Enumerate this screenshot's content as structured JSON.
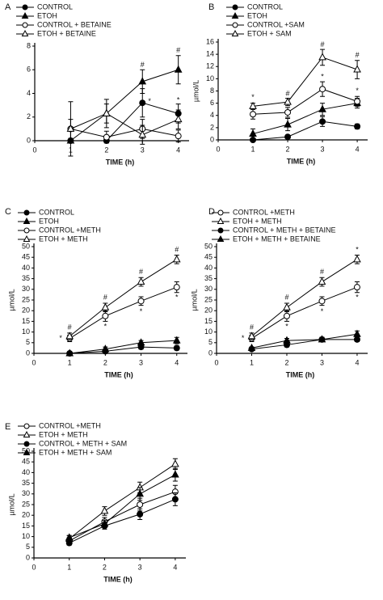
{
  "chart_data": [
    {
      "type": "line",
      "panel": "A",
      "xlabel": "TIME (h)",
      "xlim": [
        0,
        4.3
      ],
      "xticks": [
        0,
        1,
        2,
        3,
        4
      ],
      "ylim": [
        0,
        8
      ],
      "yticks": [
        0,
        2,
        4,
        6,
        8
      ],
      "x": [
        1,
        2,
        3,
        4
      ],
      "series": [
        {
          "name": "CONTROL",
          "color": "#000000",
          "marker": "circle",
          "filled": true,
          "values": [
            0,
            0,
            3.2,
            2.3
          ],
          "errors": [
            0,
            0,
            1.2,
            0.8
          ]
        },
        {
          "name": "ETOH",
          "color": "#000000",
          "marker": "triangle",
          "filled": true,
          "values": [
            0,
            2.3,
            5,
            6
          ],
          "errors": [
            0,
            0.8,
            1,
            1.2
          ]
        },
        {
          "name": "CONTROL + BETAINE",
          "color": "#000000",
          "marker": "circle",
          "filled": false,
          "values": [
            1,
            0.3,
            1,
            0.4
          ],
          "errors": [
            2.3,
            0.5,
            0.8,
            0.5
          ]
        },
        {
          "name": "ETOH + BETAINE",
          "color": "#000000",
          "marker": "triangle",
          "filled": false,
          "values": [
            1,
            2.3,
            0.5,
            1.8
          ],
          "errors": [
            0.8,
            1.2,
            0.8,
            0.8
          ]
        }
      ],
      "annotations": [
        {
          "text": "#",
          "x": 3,
          "y": 6.4
        },
        {
          "text": "#",
          "x": 4,
          "y": 7.6
        },
        {
          "text": "*",
          "x": 3.2,
          "y": 3.3
        },
        {
          "text": "*",
          "x": 4,
          "y": 3.4
        }
      ]
    },
    {
      "type": "line",
      "panel": "B",
      "xlabel": "TIME (h)",
      "ylabel": "µmol/L",
      "xlim": [
        0,
        4.3
      ],
      "xticks": [
        0,
        1,
        2,
        3,
        4
      ],
      "ylim": [
        0,
        16
      ],
      "yticks": [
        0,
        2,
        4,
        6,
        8,
        10,
        12,
        14,
        16
      ],
      "x": [
        1,
        2,
        3,
        4
      ],
      "series": [
        {
          "name": "CONTROL",
          "color": "#000000",
          "marker": "circle",
          "filled": true,
          "values": [
            0,
            0.5,
            3,
            2.2
          ],
          "errors": [
            0.2,
            0.3,
            0.8,
            0.4
          ]
        },
        {
          "name": "ETOH",
          "color": "#000000",
          "marker": "triangle",
          "filled": true,
          "values": [
            1,
            2.5,
            5,
            6
          ],
          "errors": [
            0.8,
            1,
            1,
            0.8
          ]
        },
        {
          "name": "CONTROL +SAM",
          "color": "#000000",
          "marker": "circle",
          "filled": false,
          "values": [
            4.2,
            4.5,
            8.3,
            6.3
          ],
          "errors": [
            0.8,
            0.8,
            1.2,
            0.8
          ]
        },
        {
          "name": "ETOH + SAM",
          "color": "#000000",
          "marker": "triangle",
          "filled": false,
          "values": [
            5.5,
            6.2,
            13.5,
            11.5
          ],
          "errors": [
            0.5,
            0.6,
            1.3,
            1.5
          ]
        }
      ],
      "annotations": [
        {
          "text": "*",
          "x": 1,
          "y": 6.9
        },
        {
          "text": "#",
          "x": 2,
          "y": 7.5
        },
        {
          "text": "#",
          "x": 3,
          "y": 15.5
        },
        {
          "text": "*",
          "x": 3,
          "y": 10.3
        },
        {
          "text": "#",
          "x": 4,
          "y": 13.8
        },
        {
          "text": "*",
          "x": 4,
          "y": 8
        }
      ]
    },
    {
      "type": "line",
      "panel": "C",
      "xlabel": "TIME (h)",
      "ylabel": "µmol/L",
      "xlim": [
        0,
        4.3
      ],
      "xticks": [
        0,
        1,
        2,
        3,
        4
      ],
      "ylim": [
        0,
        50
      ],
      "yticks": [
        0,
        5,
        10,
        15,
        20,
        25,
        30,
        35,
        40,
        45,
        50
      ],
      "x": [
        1,
        2,
        3,
        4
      ],
      "series": [
        {
          "name": "CONTROL",
          "color": "#000000",
          "marker": "circle",
          "filled": true,
          "values": [
            0,
            1,
            3,
            2.5
          ],
          "errors": [
            0.5,
            0.5,
            1,
            1
          ]
        },
        {
          "name": "ETOH",
          "color": "#000000",
          "marker": "triangle",
          "filled": true,
          "values": [
            0,
            2,
            5,
            6
          ],
          "errors": [
            0.5,
            1,
            1,
            1.5
          ]
        },
        {
          "name": "CONTROL +METH",
          "color": "#000000",
          "marker": "circle",
          "filled": false,
          "values": [
            7,
            17.5,
            24.5,
            31
          ],
          "errors": [
            1.5,
            2.5,
            2,
            2.5
          ]
        },
        {
          "name": "ETOH + METH",
          "color": "#000000",
          "marker": "triangle",
          "filled": false,
          "values": [
            8,
            21.5,
            33.5,
            44
          ],
          "errors": [
            1.5,
            2,
            2,
            2
          ]
        }
      ],
      "annotations": [
        {
          "text": "*",
          "x": 0.75,
          "y": 7
        },
        {
          "text": "#",
          "x": 1,
          "y": 12
        },
        {
          "text": "#",
          "x": 2,
          "y": 26
        },
        {
          "text": "*",
          "x": 2,
          "y": 12.5
        },
        {
          "text": "#",
          "x": 3,
          "y": 38
        },
        {
          "text": "*",
          "x": 3,
          "y": 19.5
        },
        {
          "text": "#",
          "x": 4,
          "y": 48.5
        },
        {
          "text": "*",
          "x": 4,
          "y": 26
        }
      ]
    },
    {
      "type": "line",
      "panel": "D",
      "xlabel": "TIME (h)",
      "ylabel": "µmol/L",
      "xlim": [
        0,
        4.3
      ],
      "xticks": [
        0,
        1,
        2,
        3,
        4
      ],
      "ylim": [
        0,
        50
      ],
      "yticks": [
        0,
        5,
        10,
        15,
        20,
        25,
        30,
        35,
        40,
        45,
        50
      ],
      "x": [
        1,
        2,
        3,
        4
      ],
      "series": [
        {
          "name": "CONTROL +METH",
          "color": "#000000",
          "marker": "circle",
          "filled": false,
          "values": [
            7,
            17.5,
            24.5,
            31
          ],
          "errors": [
            1.5,
            2.5,
            2,
            2.5
          ]
        },
        {
          "name": "ETOH + METH",
          "color": "#000000",
          "marker": "triangle",
          "filled": false,
          "values": [
            8,
            21.5,
            33.5,
            44
          ],
          "errors": [
            1.5,
            2,
            2,
            2
          ]
        },
        {
          "name": "CONTROL + METH + BETAINE",
          "color": "#000000",
          "marker": "circle",
          "filled": true,
          "values": [
            2,
            4,
            6.5,
            6.5
          ],
          "errors": [
            0.5,
            1,
            1,
            1
          ]
        },
        {
          "name": "ETOH + METH + BETAINE",
          "color": "#000000",
          "marker": "triangle",
          "filled": true,
          "values": [
            2.5,
            6,
            6.5,
            9
          ],
          "errors": [
            0.5,
            1,
            1,
            1.5
          ]
        }
      ],
      "annotations": [
        {
          "text": "*",
          "x": 0.75,
          "y": 7
        },
        {
          "text": "#",
          "x": 1,
          "y": 12
        },
        {
          "text": "#",
          "x": 2,
          "y": 26
        },
        {
          "text": "*",
          "x": 2,
          "y": 12.5
        },
        {
          "text": "#",
          "x": 3,
          "y": 38
        },
        {
          "text": "*",
          "x": 3,
          "y": 19.5
        },
        {
          "text": "*",
          "x": 4,
          "y": 48.5
        },
        {
          "text": "*",
          "x": 4,
          "y": 26
        }
      ]
    },
    {
      "type": "line",
      "panel": "E",
      "xlabel": "TIME (h)",
      "ylabel": "µmol/L",
      "xlim": [
        0,
        4.3
      ],
      "xticks": [
        0,
        1,
        2,
        3,
        4
      ],
      "ylim": [
        0,
        50
      ],
      "yticks": [
        0,
        5,
        10,
        15,
        20,
        25,
        30,
        35,
        40,
        45,
        50
      ],
      "x": [
        1,
        2,
        3,
        4
      ],
      "series": [
        {
          "name": "CONTROL +METH",
          "color": "#000000",
          "marker": "circle",
          "filled": false,
          "values": [
            8,
            17,
            25,
            31
          ],
          "errors": [
            1.5,
            2,
            3,
            3
          ]
        },
        {
          "name": "ETOH + METH",
          "color": "#000000",
          "marker": "triangle",
          "filled": false,
          "values": [
            9,
            22,
            33,
            44
          ],
          "errors": [
            1.5,
            2,
            2.5,
            2.5
          ]
        },
        {
          "name": "CONTROL + METH + SAM",
          "color": "#000000",
          "marker": "circle",
          "filled": true,
          "values": [
            7,
            15,
            20.5,
            27.5
          ],
          "errors": [
            1,
            1.5,
            2.5,
            3
          ]
        },
        {
          "name": "ETOH + METH + SAM",
          "color": "#000000",
          "marker": "triangle",
          "filled": true,
          "values": [
            9.5,
            16,
            30,
            39
          ],
          "errors": [
            1,
            1.5,
            3,
            3
          ]
        }
      ],
      "annotations": []
    }
  ]
}
